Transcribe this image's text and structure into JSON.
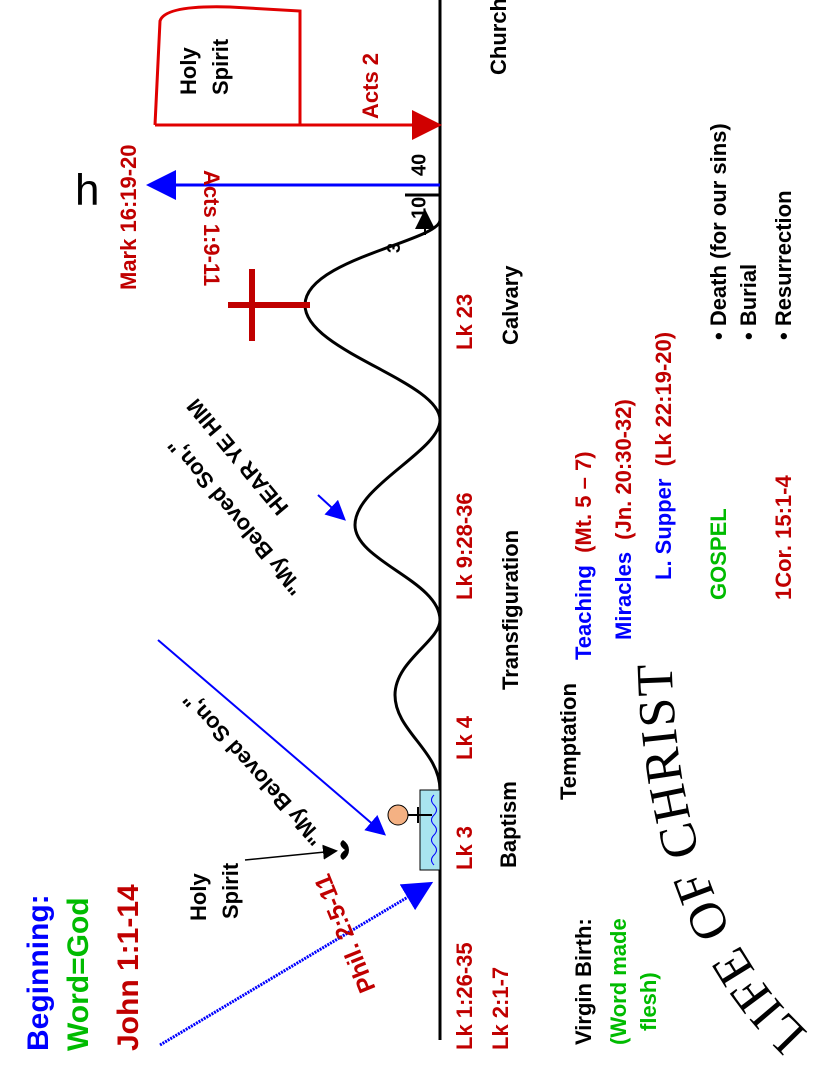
{
  "header": {
    "beginning": "Beginning:",
    "word_god": "Word=God",
    "john": "John 1:1-14"
  },
  "holy_spirit_baptism": [
    "Holy",
    "Spirit"
  ],
  "phil": "Phil. 2:5-11",
  "beloved_1": "\"My Beloved Son,\"",
  "beloved_2": "\"My Beloved Son,\"",
  "hear_ye_him": "HEAR YE HIM",
  "references": [
    "Lk 1:26-35",
    "Lk 2:1-7",
    "Lk 3",
    "Lk 4",
    "Lk 9:28-36",
    "Lk 23"
  ],
  "events": {
    "baptism": "Baptism",
    "transfiguration": "Transfiguration",
    "calvary": "Calvary",
    "church": "Church",
    "temptation": "Temptation"
  },
  "virgin_birth": {
    "title": "Virgin Birth:",
    "note_1": "(Word made",
    "note_2": "flesh)"
  },
  "ministry": [
    {
      "label": "Teaching",
      "ref": "(Mt. 5 – 7)"
    },
    {
      "label": "Miracles",
      "ref": "(Jn. 20:30-32)"
    },
    {
      "label": "L. Supper",
      "ref": "(Lk 22:19-20)"
    }
  ],
  "gospel": {
    "title": "GOSPEL",
    "ref": "1Cor. 15:1-4",
    "points": [
      "• Death  (for our sins)",
      "• Burial",
      "• Resurrection"
    ]
  },
  "days": {
    "three": "3",
    "ten": "10",
    "forty": "40"
  },
  "ascension": {
    "acts": "Acts 1:9-11",
    "mark": "Mark 16:19-20",
    "symbol": "h"
  },
  "pentecost": {
    "holy": "Holy",
    "spirit": "Spirit",
    "acts": "Acts 2"
  },
  "footer": "LIFE OF CHRIST"
}
